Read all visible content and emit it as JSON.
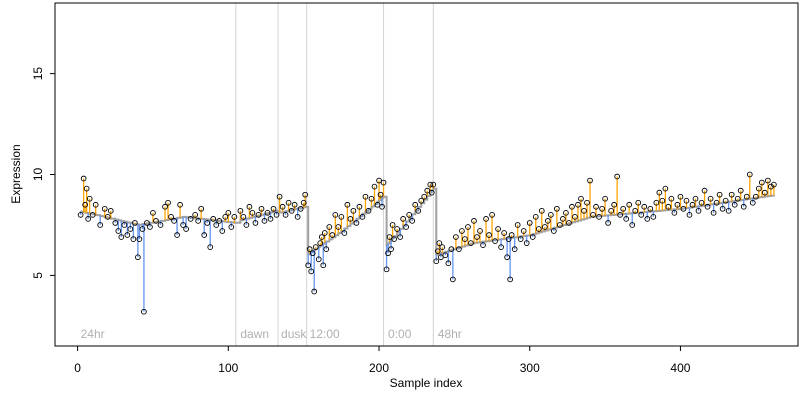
{
  "chart_data": {
    "type": "scatter",
    "title": "",
    "xlabel": "Sample index",
    "ylabel": "Expression",
    "xlim": [
      -15,
      478
    ],
    "ylim": [
      1.5,
      18.5
    ],
    "xticks": [
      0,
      100,
      200,
      300,
      400
    ],
    "yticks": [
      5,
      10,
      15
    ],
    "grid": false,
    "baseline_color": "#a0a0a0",
    "up_color": "#ffa500",
    "down_color": "#6495ed",
    "divider_color": "#d3d3d3",
    "segments": [
      {
        "label": "24hr",
        "start": 0,
        "divider": null
      },
      {
        "label": "dawn",
        "start": 106,
        "divider": 105
      },
      {
        "label": "dusk",
        "start": 133,
        "divider": 133
      },
      {
        "label": "12:00",
        "start": 152,
        "divider": 152
      },
      {
        "label": "0:00",
        "start": 204,
        "divider": 203
      },
      {
        "label": "48hr",
        "start": 237,
        "divider": 236
      }
    ],
    "baseline": [
      [
        0,
        8.2
      ],
      [
        40,
        7.5
      ],
      [
        70,
        7.9
      ],
      [
        105,
        7.6
      ],
      [
        106,
        7.7
      ],
      [
        132,
        8.2
      ],
      [
        133,
        8.1
      ],
      [
        151,
        8.4
      ],
      [
        152,
        6.0
      ],
      [
        175,
        7.2
      ],
      [
        203,
        8.9
      ],
      [
        204,
        6.4
      ],
      [
        236,
        9.3
      ],
      [
        237,
        6.0
      ],
      [
        262,
        6.6
      ],
      [
        300,
        7.0
      ],
      [
        340,
        7.9
      ],
      [
        400,
        8.3
      ],
      [
        464,
        9.0
      ]
    ],
    "points": [
      [
        2,
        8.0
      ],
      [
        4,
        9.8
      ],
      [
        5,
        8.5
      ],
      [
        6,
        9.3
      ],
      [
        7,
        7.8
      ],
      [
        8,
        8.8
      ],
      [
        10,
        8.0
      ],
      [
        12,
        8.5
      ],
      [
        15,
        7.5
      ],
      [
        18,
        8.3
      ],
      [
        20,
        7.9
      ],
      [
        22,
        8.2
      ],
      [
        25,
        7.6
      ],
      [
        27,
        7.2
      ],
      [
        29,
        6.9
      ],
      [
        31,
        7.5
      ],
      [
        33,
        7.0
      ],
      [
        35,
        7.3
      ],
      [
        37,
        6.8
      ],
      [
        38,
        7.6
      ],
      [
        40,
        5.9
      ],
      [
        41,
        6.8
      ],
      [
        43,
        7.3
      ],
      [
        44,
        3.2
      ],
      [
        46,
        7.6
      ],
      [
        48,
        7.4
      ],
      [
        50,
        8.1
      ],
      [
        52,
        7.7
      ],
      [
        55,
        7.5
      ],
      [
        58,
        8.4
      ],
      [
        60,
        8.6
      ],
      [
        62,
        7.9
      ],
      [
        64,
        7.7
      ],
      [
        66,
        7.0
      ],
      [
        68,
        8.5
      ],
      [
        70,
        7.5
      ],
      [
        72,
        7.3
      ],
      [
        75,
        7.8
      ],
      [
        78,
        8.0
      ],
      [
        80,
        7.7
      ],
      [
        82,
        8.3
      ],
      [
        84,
        7.0
      ],
      [
        86,
        7.6
      ],
      [
        88,
        6.4
      ],
      [
        90,
        7.8
      ],
      [
        92,
        7.5
      ],
      [
        94,
        7.7
      ],
      [
        96,
        7.2
      ],
      [
        98,
        7.9
      ],
      [
        100,
        8.1
      ],
      [
        102,
        7.4
      ],
      [
        104,
        7.9
      ],
      [
        108,
        8.2
      ],
      [
        110,
        7.9
      ],
      [
        112,
        7.5
      ],
      [
        114,
        8.4
      ],
      [
        116,
        8.1
      ],
      [
        118,
        7.6
      ],
      [
        120,
        8.0
      ],
      [
        122,
        8.3
      ],
      [
        124,
        7.7
      ],
      [
        126,
        8.1
      ],
      [
        128,
        7.8
      ],
      [
        130,
        8.3
      ],
      [
        132,
        8.0
      ],
      [
        134,
        8.9
      ],
      [
        136,
        8.4
      ],
      [
        138,
        8.0
      ],
      [
        140,
        8.6
      ],
      [
        142,
        8.2
      ],
      [
        144,
        8.5
      ],
      [
        146,
        7.9
      ],
      [
        148,
        8.3
      ],
      [
        150,
        8.6
      ],
      [
        151,
        9.0
      ],
      [
        153,
        5.5
      ],
      [
        154,
        6.3
      ],
      [
        155,
        5.2
      ],
      [
        156,
        6.1
      ],
      [
        157,
        4.2
      ],
      [
        158,
        6.4
      ],
      [
        160,
        5.8
      ],
      [
        161,
        6.6
      ],
      [
        162,
        6.9
      ],
      [
        163,
        5.5
      ],
      [
        164,
        7.1
      ],
      [
        165,
        6.3
      ],
      [
        167,
        7.4
      ],
      [
        169,
        7.0
      ],
      [
        171,
        8.0
      ],
      [
        173,
        7.4
      ],
      [
        175,
        7.9
      ],
      [
        177,
        7.1
      ],
      [
        179,
        8.5
      ],
      [
        181,
        7.8
      ],
      [
        183,
        8.2
      ],
      [
        185,
        7.6
      ],
      [
        187,
        8.4
      ],
      [
        189,
        7.9
      ],
      [
        191,
        8.9
      ],
      [
        193,
        8.2
      ],
      [
        195,
        8.8
      ],
      [
        197,
        9.4
      ],
      [
        199,
        8.5
      ],
      [
        200,
        9.7
      ],
      [
        201,
        9.0
      ],
      [
        202,
        8.4
      ],
      [
        203,
        9.6
      ],
      [
        205,
        5.3
      ],
      [
        206,
        6.1
      ],
      [
        207,
        6.9
      ],
      [
        208,
        6.3
      ],
      [
        209,
        7.5
      ],
      [
        210,
        6.8
      ],
      [
        212,
        7.3
      ],
      [
        214,
        6.9
      ],
      [
        216,
        7.8
      ],
      [
        218,
        7.4
      ],
      [
        220,
        8.0
      ],
      [
        222,
        7.7
      ],
      [
        224,
        8.5
      ],
      [
        226,
        8.2
      ],
      [
        228,
        8.7
      ],
      [
        230,
        8.9
      ],
      [
        232,
        9.2
      ],
      [
        234,
        9.5
      ],
      [
        235,
        9.1
      ],
      [
        236,
        9.5
      ],
      [
        238,
        5.7
      ],
      [
        239,
        6.2
      ],
      [
        240,
        6.6
      ],
      [
        241,
        5.9
      ],
      [
        242,
        6.4
      ],
      [
        244,
        6.0
      ],
      [
        246,
        5.6
      ],
      [
        248,
        6.3
      ],
      [
        249,
        4.8
      ],
      [
        251,
        6.9
      ],
      [
        253,
        6.3
      ],
      [
        255,
        7.2
      ],
      [
        257,
        6.8
      ],
      [
        259,
        7.4
      ],
      [
        261,
        6.6
      ],
      [
        263,
        7.7
      ],
      [
        265,
        6.9
      ],
      [
        267,
        7.2
      ],
      [
        269,
        6.5
      ],
      [
        271,
        7.8
      ],
      [
        273,
        7.0
      ],
      [
        275,
        8.0
      ],
      [
        277,
        6.7
      ],
      [
        279,
        7.3
      ],
      [
        281,
        6.4
      ],
      [
        283,
        7.1
      ],
      [
        285,
        5.9
      ],
      [
        286,
        6.8
      ],
      [
        287,
        4.8
      ],
      [
        288,
        7.0
      ],
      [
        290,
        6.3
      ],
      [
        292,
        7.5
      ],
      [
        294,
        6.8
      ],
      [
        296,
        7.2
      ],
      [
        298,
        6.6
      ],
      [
        300,
        7.6
      ],
      [
        302,
        6.9
      ],
      [
        304,
        7.9
      ],
      [
        306,
        7.3
      ],
      [
        308,
        8.2
      ],
      [
        310,
        7.4
      ],
      [
        312,
        7.7
      ],
      [
        314,
        8.0
      ],
      [
        316,
        7.2
      ],
      [
        318,
        8.3
      ],
      [
        320,
        7.5
      ],
      [
        322,
        7.8
      ],
      [
        324,
        8.1
      ],
      [
        326,
        7.6
      ],
      [
        328,
        8.4
      ],
      [
        330,
        7.9
      ],
      [
        332,
        8.5
      ],
      [
        334,
        8.8
      ],
      [
        336,
        8.2
      ],
      [
        338,
        8.6
      ],
      [
        340,
        9.7
      ],
      [
        342,
        8.0
      ],
      [
        344,
        8.4
      ],
      [
        346,
        7.9
      ],
      [
        348,
        8.3
      ],
      [
        350,
        8.8
      ],
      [
        352,
        7.6
      ],
      [
        354,
        8.2
      ],
      [
        356,
        8.5
      ],
      [
        358,
        9.9
      ],
      [
        360,
        8.0
      ],
      [
        362,
        8.3
      ],
      [
        364,
        7.8
      ],
      [
        366,
        8.5
      ],
      [
        368,
        7.5
      ],
      [
        370,
        8.2
      ],
      [
        372,
        8.6
      ],
      [
        374,
        8.0
      ],
      [
        376,
        8.4
      ],
      [
        378,
        7.8
      ],
      [
        380,
        8.3
      ],
      [
        382,
        7.9
      ],
      [
        384,
        8.6
      ],
      [
        386,
        9.1
      ],
      [
        388,
        8.7
      ],
      [
        390,
        9.3
      ],
      [
        392,
        8.4
      ],
      [
        394,
        8.8
      ],
      [
        396,
        8.1
      ],
      [
        398,
        8.5
      ],
      [
        400,
        8.9
      ],
      [
        402,
        8.3
      ],
      [
        404,
        8.7
      ],
      [
        406,
        8.0
      ],
      [
        408,
        8.5
      ],
      [
        410,
        8.8
      ],
      [
        412,
        8.2
      ],
      [
        414,
        8.6
      ],
      [
        416,
        9.2
      ],
      [
        418,
        8.4
      ],
      [
        420,
        8.8
      ],
      [
        422,
        8.1
      ],
      [
        424,
        8.6
      ],
      [
        426,
        9.0
      ],
      [
        428,
        8.3
      ],
      [
        430,
        8.7
      ],
      [
        432,
        8.2
      ],
      [
        434,
        9.0
      ],
      [
        436,
        8.5
      ],
      [
        438,
        8.8
      ],
      [
        440,
        9.2
      ],
      [
        442,
        8.4
      ],
      [
        444,
        8.9
      ],
      [
        446,
        10.0
      ],
      [
        448,
        8.6
      ],
      [
        450,
        8.9
      ],
      [
        452,
        9.3
      ],
      [
        454,
        9.6
      ],
      [
        456,
        9.1
      ],
      [
        458,
        9.7
      ],
      [
        460,
        9.4
      ],
      [
        462,
        9.5
      ]
    ]
  }
}
